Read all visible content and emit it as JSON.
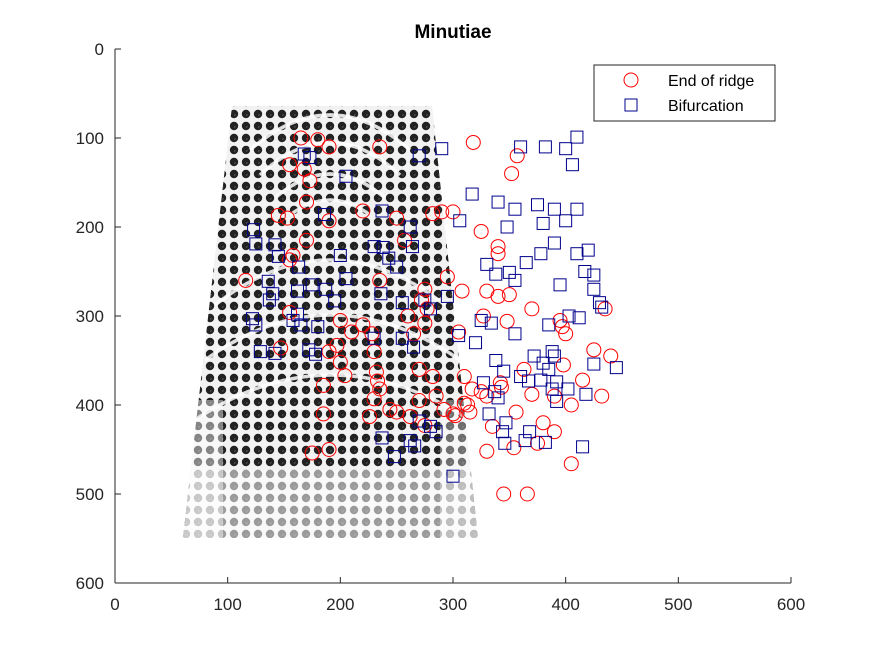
{
  "chart_data": {
    "type": "scatter",
    "title": "Minutiae",
    "xlabel": "",
    "ylabel": "",
    "xlim": [
      0,
      600
    ],
    "ylim": [
      0,
      600
    ],
    "y_reversed": true,
    "grid": false,
    "legend_position": "top-right",
    "xticks": [
      "0",
      "100",
      "200",
      "300",
      "400",
      "500",
      "600"
    ],
    "yticks": [
      "0",
      "100",
      "200",
      "300",
      "400",
      "500",
      "600"
    ],
    "background_image": "fingerprint",
    "series": [
      {
        "name": "End of ridge",
        "marker": "circle",
        "color": "#ff0000",
        "points": [
          [
            165,
            100
          ],
          [
            180,
            102
          ],
          [
            190,
            110
          ],
          [
            235,
            110
          ],
          [
            318,
            105
          ],
          [
            357,
            120
          ],
          [
            155,
            130
          ],
          [
            168,
            135
          ],
          [
            173,
            148
          ],
          [
            352,
            140
          ],
          [
            170,
            172
          ],
          [
            145,
            187
          ],
          [
            153,
            190
          ],
          [
            190,
            193
          ],
          [
            220,
            182
          ],
          [
            250,
            190
          ],
          [
            282,
            185
          ],
          [
            290,
            183
          ],
          [
            300,
            183
          ],
          [
            325,
            205
          ],
          [
            257,
            215
          ],
          [
            170,
            215
          ],
          [
            158,
            232
          ],
          [
            155,
            237
          ],
          [
            340,
            222
          ],
          [
            340,
            230
          ],
          [
            116,
            260
          ],
          [
            235,
            260
          ],
          [
            295,
            256
          ],
          [
            275,
            270
          ],
          [
            272,
            282
          ],
          [
            308,
            272
          ],
          [
            330,
            272
          ],
          [
            340,
            278
          ],
          [
            350,
            276
          ],
          [
            370,
            292
          ],
          [
            155,
            296
          ],
          [
            200,
            305
          ],
          [
            220,
            310
          ],
          [
            260,
            300
          ],
          [
            277,
            292
          ],
          [
            327,
            300
          ],
          [
            348,
            306
          ],
          [
            395,
            305
          ],
          [
            397,
            312
          ],
          [
            400,
            320
          ],
          [
            435,
            292
          ],
          [
            147,
            336
          ],
          [
            190,
            340
          ],
          [
            197,
            333
          ],
          [
            210,
            318
          ],
          [
            228,
            320
          ],
          [
            230,
            340
          ],
          [
            265,
            320
          ],
          [
            275,
            308
          ],
          [
            305,
            318
          ],
          [
            270,
            360
          ],
          [
            200,
            352
          ],
          [
            204,
            367
          ],
          [
            232,
            363
          ],
          [
            233,
            373
          ],
          [
            235,
            382
          ],
          [
            282,
            368
          ],
          [
            310,
            368
          ],
          [
            317,
            382
          ],
          [
            342,
            375
          ],
          [
            363,
            360
          ],
          [
            398,
            355
          ],
          [
            415,
            372
          ],
          [
            440,
            345
          ],
          [
            425,
            338
          ],
          [
            185,
            378
          ],
          [
            230,
            393
          ],
          [
            250,
            408
          ],
          [
            270,
            395
          ],
          [
            285,
            390
          ],
          [
            292,
            405
          ],
          [
            300,
            410
          ],
          [
            310,
            398
          ],
          [
            325,
            385
          ],
          [
            330,
            390
          ],
          [
            343,
            380
          ],
          [
            370,
            388
          ],
          [
            390,
            390
          ],
          [
            405,
            400
          ],
          [
            432,
            390
          ],
          [
            185,
            410
          ],
          [
            226,
            413
          ],
          [
            244,
            405
          ],
          [
            262,
            413
          ],
          [
            275,
            423
          ],
          [
            302,
            412
          ],
          [
            315,
            408
          ],
          [
            335,
            424
          ],
          [
            356,
            408
          ],
          [
            380,
            420
          ],
          [
            390,
            430
          ],
          [
            405,
            466
          ],
          [
            175,
            454
          ],
          [
            190,
            450
          ],
          [
            330,
            452
          ],
          [
            354,
            448
          ],
          [
            375,
            443
          ],
          [
            345,
            500
          ],
          [
            366,
            500
          ],
          [
            313,
            400
          ]
        ]
      },
      {
        "name": "Bifurcation",
        "marker": "square",
        "color": "#00008b",
        "points": [
          [
            168,
            118
          ],
          [
            173,
            122
          ],
          [
            205,
            143
          ],
          [
            270,
            120
          ],
          [
            290,
            112
          ],
          [
            360,
            110
          ],
          [
            382,
            110
          ],
          [
            400,
            112
          ],
          [
            410,
            99
          ],
          [
            406,
            130
          ],
          [
            317,
            163
          ],
          [
            340,
            172
          ],
          [
            355,
            180
          ],
          [
            375,
            175
          ],
          [
            390,
            180
          ],
          [
            400,
            193
          ],
          [
            410,
            180
          ],
          [
            237,
            182
          ],
          [
            262,
            200
          ],
          [
            306,
            193
          ],
          [
            348,
            200
          ],
          [
            380,
            196
          ],
          [
            186,
            186
          ],
          [
            123,
            203
          ],
          [
            125,
            219
          ],
          [
            142,
            220
          ],
          [
            145,
            233
          ],
          [
            163,
            245
          ],
          [
            200,
            232
          ],
          [
            230,
            222
          ],
          [
            238,
            223
          ],
          [
            243,
            235
          ],
          [
            250,
            245
          ],
          [
            264,
            222
          ],
          [
            330,
            242
          ],
          [
            338,
            253
          ],
          [
            350,
            251
          ],
          [
            355,
            260
          ],
          [
            365,
            240
          ],
          [
            378,
            230
          ],
          [
            390,
            218
          ],
          [
            410,
            230
          ],
          [
            420,
            226
          ],
          [
            417,
            250
          ],
          [
            425,
            254
          ],
          [
            432,
            290
          ],
          [
            395,
            265
          ],
          [
            425,
            270
          ],
          [
            430,
            285
          ],
          [
            175,
            265
          ],
          [
            187,
            270
          ],
          [
            195,
            283
          ],
          [
            205,
            258
          ],
          [
            236,
            275
          ],
          [
            255,
            285
          ],
          [
            275,
            282
          ],
          [
            280,
            292
          ],
          [
            295,
            278
          ],
          [
            325,
            305
          ],
          [
            334,
            308
          ],
          [
            355,
            320
          ],
          [
            385,
            310
          ],
          [
            403,
            300
          ],
          [
            412,
            302
          ],
          [
            136,
            261
          ],
          [
            140,
            275
          ],
          [
            162,
            272
          ],
          [
            137,
            282
          ],
          [
            122,
            303
          ],
          [
            125,
            310
          ],
          [
            158,
            305
          ],
          [
            162,
            298
          ],
          [
            165,
            310
          ],
          [
            180,
            312
          ],
          [
            230,
            325
          ],
          [
            255,
            325
          ],
          [
            265,
            335
          ],
          [
            305,
            322
          ],
          [
            320,
            330
          ],
          [
            388,
            340
          ],
          [
            390,
            345
          ],
          [
            372,
            345
          ],
          [
            380,
            353
          ],
          [
            385,
            360
          ],
          [
            392,
            374
          ],
          [
            402,
            382
          ],
          [
            418,
            388
          ],
          [
            425,
            354
          ],
          [
            445,
            358
          ],
          [
            129,
            340
          ],
          [
            142,
            342
          ],
          [
            172,
            338
          ],
          [
            178,
            343
          ],
          [
            338,
            350
          ],
          [
            345,
            362
          ],
          [
            360,
            368
          ],
          [
            367,
            373
          ],
          [
            378,
            372
          ],
          [
            388,
            382
          ],
          [
            392,
            396
          ],
          [
            327,
            375
          ],
          [
            337,
            385
          ],
          [
            340,
            392
          ],
          [
            332,
            410
          ],
          [
            347,
            420
          ],
          [
            344,
            430
          ],
          [
            346,
            443
          ],
          [
            368,
            430
          ],
          [
            364,
            440
          ],
          [
            382,
            442
          ],
          [
            270,
            418
          ],
          [
            280,
            424
          ],
          [
            285,
            430
          ],
          [
            262,
            440
          ],
          [
            248,
            458
          ],
          [
            266,
            446
          ],
          [
            300,
            480
          ],
          [
            237,
            437
          ],
          [
            415,
            447
          ]
        ]
      }
    ]
  }
}
